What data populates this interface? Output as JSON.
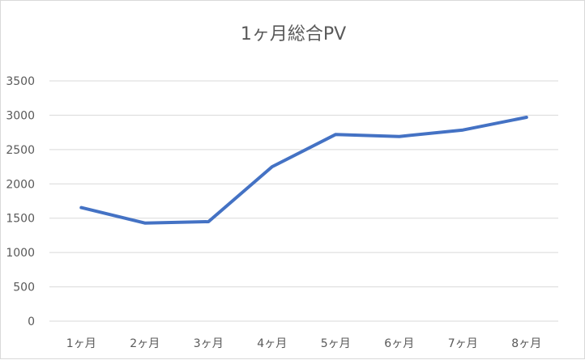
{
  "chart_data": {
    "type": "line",
    "title": "1ヶ月総合PV",
    "categories": [
      "1ヶ月",
      "2ヶ月",
      "3ヶ月",
      "4ヶ月",
      "5ヶ月",
      "6ヶ月",
      "7ヶ月",
      "8ヶ月"
    ],
    "series": [
      {
        "values": [
          1655,
          1430,
          1450,
          2250,
          2720,
          2690,
          2785,
          2970
        ],
        "color": "#4472c4"
      }
    ],
    "yticks": [
      "0",
      "500",
      "1000",
      "1500",
      "2000",
      "2500",
      "3000",
      "3500"
    ],
    "ylim": [
      0,
      3500
    ],
    "grid": true,
    "legend": "none"
  }
}
